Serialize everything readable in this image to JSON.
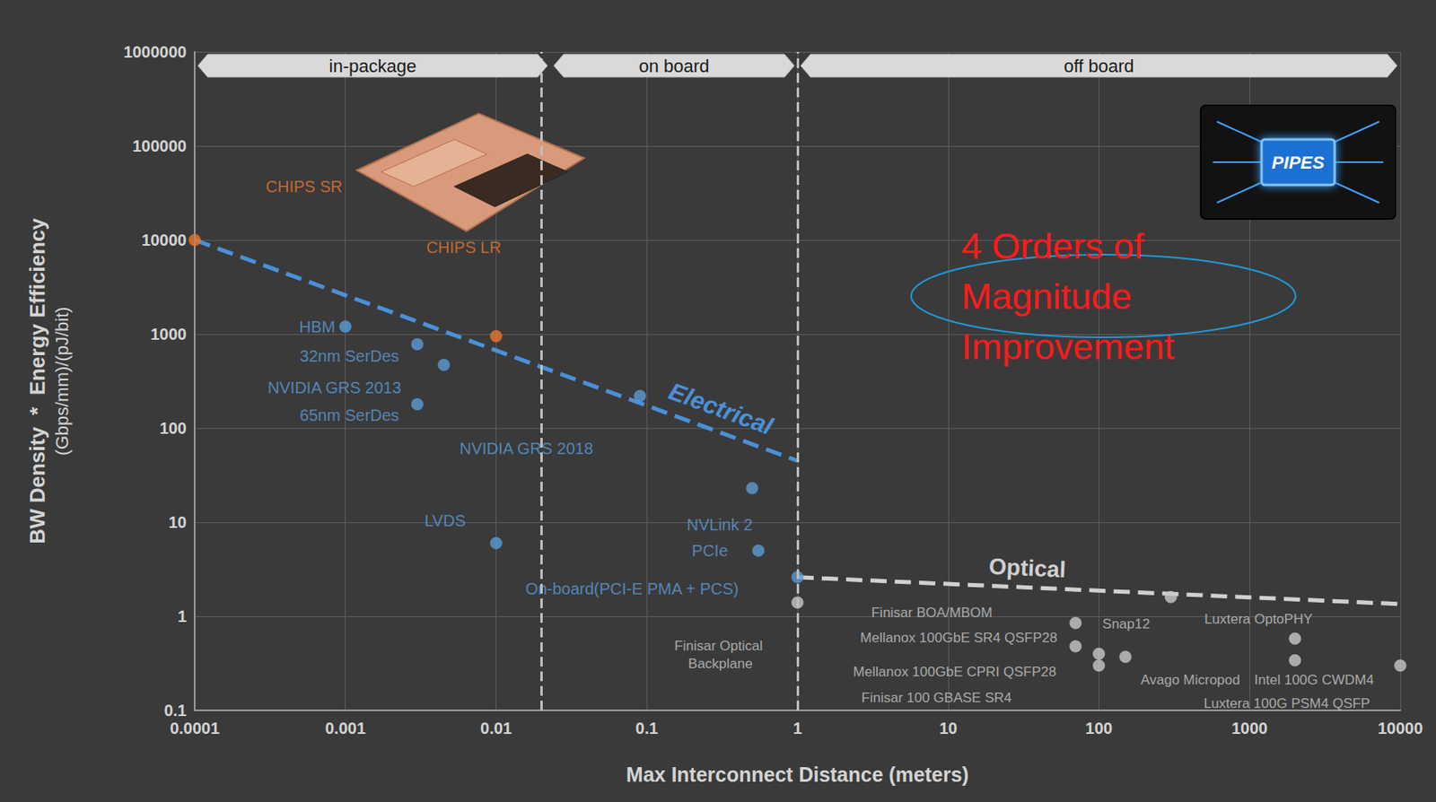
{
  "chart_data": {
    "type": "scatter",
    "log": true,
    "grid": true,
    "x_label": "Max Interconnect Distance (meters)",
    "y_label": [
      "BW Density  *  Energy Efficiency",
      "(Gbps/mm)/(pJ/bit)"
    ],
    "xlim": [
      0.0001,
      10000
    ],
    "xticks": [
      0.0001,
      0.001,
      0.01,
      0.1,
      1,
      10,
      100,
      1000,
      10000
    ],
    "ylim": [
      0.1,
      1000000
    ],
    "yticks": [
      0.1,
      1,
      10,
      100,
      1000,
      10000,
      100000,
      1000000
    ],
    "regions": [
      {
        "label": "in-package",
        "from": 0.0001,
        "to": 0.023
      },
      {
        "label": "on board",
        "from": 0.023,
        "to": 1
      },
      {
        "label": "off board",
        "from": 1,
        "to": 10000
      }
    ],
    "annotations": [
      {
        "text": "4 Orders of Magnitude Improvement",
        "color": "#ff1a1a"
      }
    ],
    "chip_label": "PIPES",
    "series": [
      {
        "type": "scatter",
        "marker": "circle",
        "color": "#e8772e",
        "labels": [
          "CHIPS SR",
          "CHIPS LR"
        ],
        "x": [
          0.0001,
          0.01
        ],
        "values": [
          10000,
          950
        ]
      },
      {
        "type": "scatter",
        "marker": "circle",
        "color": "#5b9bd5",
        "labels": [
          "HBM",
          "32nm SerDes",
          "NVIDIA GRS 2013",
          "65nm SerDes",
          "NVIDIA GRS 2018",
          "LVDS",
          "NVLink 2",
          "PCIe",
          "On-board(PCI-E PMA + PCS)"
        ],
        "x": [
          0.001,
          0.003,
          0.0045,
          0.003,
          0.09,
          0.01,
          0.5,
          0.55,
          1
        ],
        "values": [
          1200,
          780,
          470,
          180,
          220,
          6,
          23,
          5,
          2.6
        ]
      },
      {
        "type": "scatter",
        "marker": "circle",
        "color": "#c8c8c8",
        "labels": [
          "Finisar Optical Backplane",
          "Finisar BOA/MBOM",
          "Snap12",
          "Mellanox 100GbE SR4 QSFP28",
          "Mellanox 100GbE CPRI QSFP28",
          "Avago Micropod",
          "Finisar 100 GBASE SR4",
          "Luxtera OptoPHY",
          "Luxtera 100G PSM4 QSFP",
          "Intel 100G CWDM4"
        ],
        "x": [
          1,
          70,
          300,
          70,
          100,
          150,
          100,
          2000,
          2000,
          10000
        ],
        "values": [
          1.4,
          0.85,
          1.6,
          0.48,
          0.4,
          0.37,
          0.3,
          0.58,
          0.34,
          0.3
        ]
      },
      {
        "name": "Electrical",
        "type": "line",
        "line_style": "dashed",
        "color": "#4a90d9",
        "x": [
          0.0001,
          1
        ],
        "values": [
          10000,
          45
        ]
      },
      {
        "name": "Optical",
        "type": "line",
        "line_style": "dashed",
        "color": "#d0d0d0",
        "x": [
          1,
          10000
        ],
        "values": [
          2.6,
          1.35
        ]
      }
    ]
  }
}
